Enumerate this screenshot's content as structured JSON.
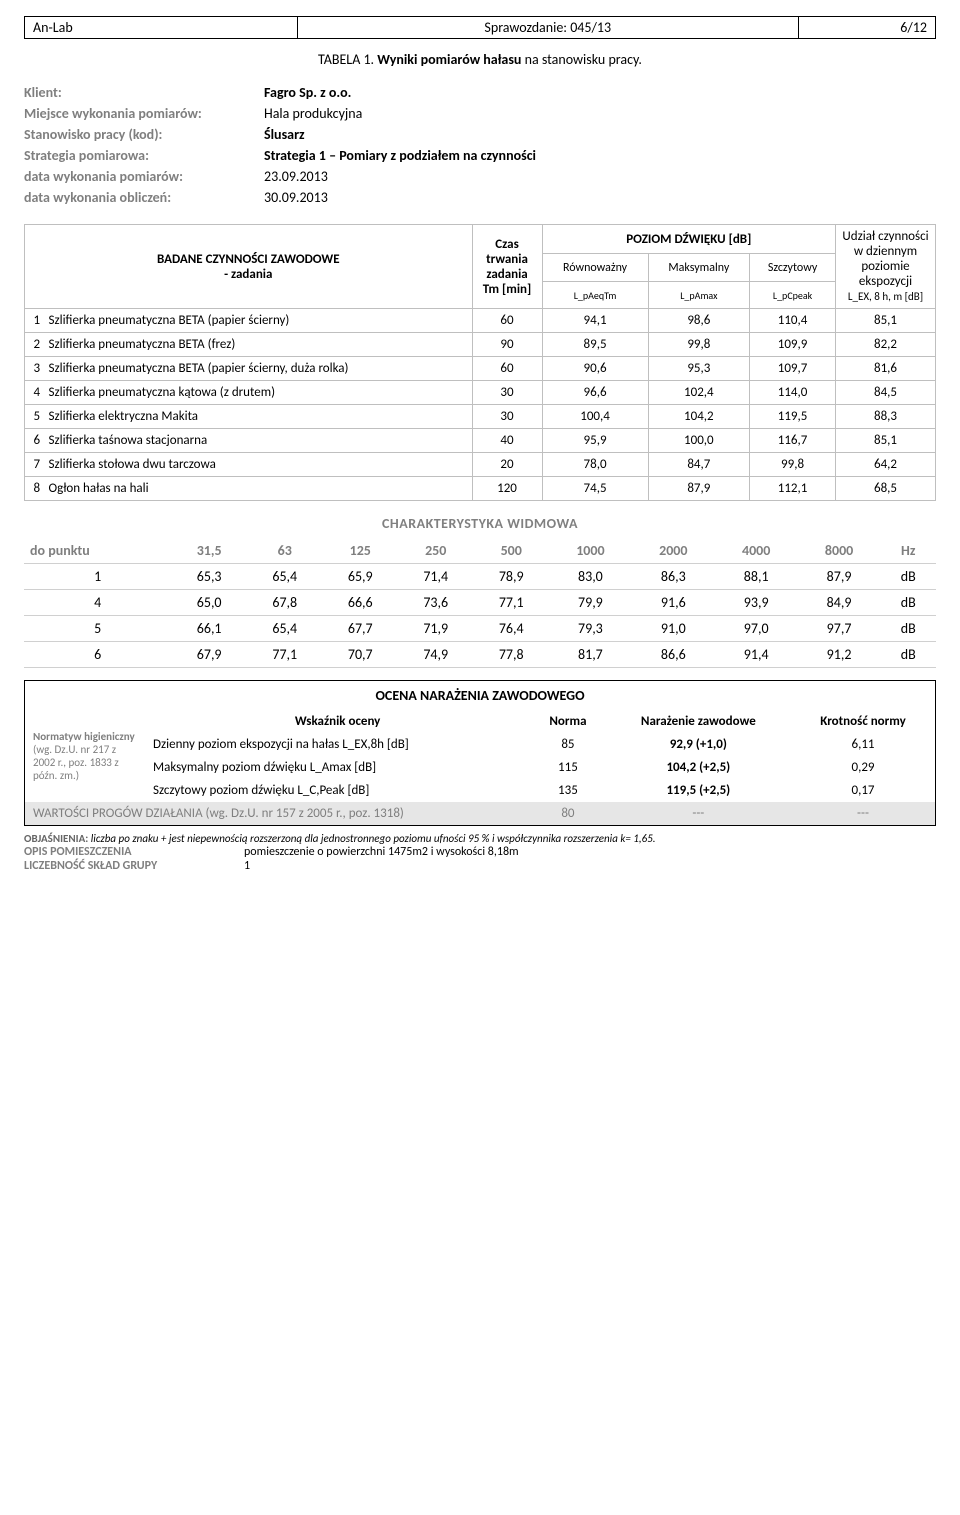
{
  "header": {
    "lab": "An-Lab",
    "report": "Sprawozdanie: 045/13",
    "page": "6/12"
  },
  "title_prefix": "TABELA 1. ",
  "title_bold": "Wyniki pomiarów hałasu",
  "title_suffix": " na stanowisku pracy.",
  "meta": {
    "klient_label": "Klient:",
    "klient_value": "Fagro Sp. z o.o.",
    "miejsce_label": "Miejsce wykonania pomiarów:",
    "miejsce_value": "Hala produkcyjna",
    "stanowisko_label": "Stanowisko pracy (kod):",
    "stanowisko_value": "Ślusarz",
    "strategia_label": "Strategia pomiarowa:",
    "strategia_value": "Strategia 1 – Pomiary z podziałem na czynności",
    "data_pom_label": "data wykonania pomiarów:",
    "data_pom_value": "23.09.2013",
    "data_obl_label": "data wykonania obliczeń:",
    "data_obl_value": "30.09.2013"
  },
  "t1": {
    "h_tasks": "BADANE CZYNNOŚCI ZAWODOWE\n- zadania",
    "h_time": "Czas trwania zadania Tm [min]",
    "h_level": "POZIOM DŹWIĘKU [dB]",
    "h_share": "Udział czynności w dziennym poziomie ekspozycji",
    "h_share_sub": "L_EX, 8 h, m [dB]",
    "sub_eq": "Równoważny",
    "sub_eq_l": "L_pAeqTm",
    "sub_max": "Maksymalny",
    "sub_max_l": "L_pAmax",
    "sub_peak": "Szczytowy",
    "sub_peak_l": "L_pCpeak",
    "rows": [
      {
        "i": "1",
        "task": "Szlifierka pneumatyczna BETA (papier ścierny)",
        "tm": "60",
        "eq": "94,1",
        "mx": "98,6",
        "pk": "110,4",
        "sh": "85,1"
      },
      {
        "i": "2",
        "task": "Szlifierka pneumatyczna BETA (frez)",
        "tm": "90",
        "eq": "89,5",
        "mx": "99,8",
        "pk": "109,9",
        "sh": "82,2"
      },
      {
        "i": "3",
        "task": "Szlifierka pneumatyczna BETA (papier ścierny, duża rolka)",
        "tm": "60",
        "eq": "90,6",
        "mx": "95,3",
        "pk": "109,7",
        "sh": "81,6"
      },
      {
        "i": "4",
        "task": "Szlifierka pneumatyczna kątowa (z drutem)",
        "tm": "30",
        "eq": "96,6",
        "mx": "102,4",
        "pk": "114,0",
        "sh": "84,5"
      },
      {
        "i": "5",
        "task": "Szlifierka elektryczna Makita",
        "tm": "30",
        "eq": "100,4",
        "mx": "104,2",
        "pk": "119,5",
        "sh": "88,3"
      },
      {
        "i": "6",
        "task": "Szlifierka taśnowa stacjonarna",
        "tm": "40",
        "eq": "95,9",
        "mx": "100,0",
        "pk": "116,7",
        "sh": "85,1"
      },
      {
        "i": "7",
        "task": "Szlifierka stołowa dwu tarczowa",
        "tm": "20",
        "eq": "78,0",
        "mx": "84,7",
        "pk": "99,8",
        "sh": "64,2"
      },
      {
        "i": "8",
        "task": "Ogłon hałas na hali",
        "tm": "120",
        "eq": "74,5",
        "mx": "87,9",
        "pk": "112,1",
        "sh": "68,5"
      }
    ]
  },
  "widmo": {
    "title": "CHARAKTERYSTYKA WIDMOWA",
    "header_label": "do punktu",
    "freqs": [
      "31,5",
      "63",
      "125",
      "250",
      "500",
      "1000",
      "2000",
      "4000",
      "8000",
      "Hz"
    ],
    "rows": [
      {
        "p": "1",
        "v": [
          "65,3",
          "65,4",
          "65,9",
          "71,4",
          "78,9",
          "83,0",
          "86,3",
          "88,1",
          "87,9",
          "dB"
        ]
      },
      {
        "p": "4",
        "v": [
          "65,0",
          "67,8",
          "66,6",
          "73,6",
          "77,1",
          "79,9",
          "91,6",
          "93,9",
          "84,9",
          "dB"
        ]
      },
      {
        "p": "5",
        "v": [
          "66,1",
          "65,4",
          "67,7",
          "71,9",
          "76,4",
          "79,3",
          "91,0",
          "97,0",
          "97,7",
          "dB"
        ]
      },
      {
        "p": "6",
        "v": [
          "67,9",
          "77,1",
          "70,7",
          "74,9",
          "77,8",
          "81,7",
          "86,6",
          "91,4",
          "91,2",
          "dB"
        ]
      }
    ]
  },
  "ocena": {
    "title": "OCENA NARAŻENIA ZAWODOWEGO",
    "norm_label": "Normatyw higieniczny",
    "norm_ref": "(wg. Dz.U. nr 217 z 2002 r., poz. 1833 z późn. zm.)",
    "h_ind": "Wskaźnik oceny",
    "h_norma": "Norma",
    "h_naraz": "Narażenie zawodowe",
    "h_krot": "Krotność normy",
    "rows": [
      {
        "ind": "Dzienny poziom ekspozycji na hałas L_EX,8h [dB]",
        "n": "85",
        "v": "92,9 (+1,0)",
        "k": "6,11"
      },
      {
        "ind": "Maksymalny poziom dźwięku L_Amax [dB]",
        "n": "115",
        "v": "104,2 (+2,5)",
        "k": "0,29"
      },
      {
        "ind": "Szczytowy poziom dźwięku L_C,Peak [dB]",
        "n": "135",
        "v": "119,5 (+2,5)",
        "k": "0,17"
      }
    ],
    "prog_label": "WARTOŚCI PROGÓW DZIAŁANIA (wg. Dz.U. nr 157 z 2005 r., poz. 1318)",
    "prog_n": "80",
    "prog_v": "---",
    "prog_k": "---"
  },
  "foot": {
    "obj_b": "OBJAŚNIENIA:",
    "obj": " liczba po znaku + jest niepewnością rozszerzoną dla jednostronnego poziomu ufności 95 % i współczynnika rozszerzenia k= 1,65.",
    "opis_l": "OPIS POMIESZCZENIA",
    "opis_v": "pomieszczenie o powierzchni 1475m2 i wysokości 8,18m",
    "licz_l": "LICZEBNOŚĆ SKŁAD GRUPY",
    "licz_v": "1"
  }
}
